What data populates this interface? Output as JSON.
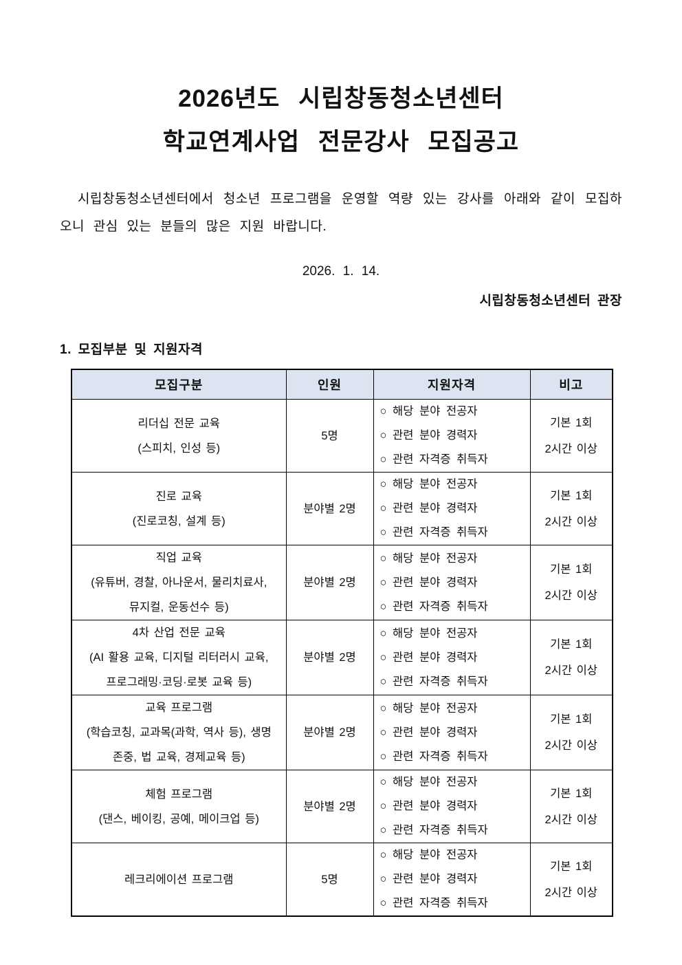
{
  "document": {
    "title_lines": [
      "2026년도 시립창동청소년센터",
      "학교연계사업 전문강사 모집공고"
    ],
    "intro": "시립창동청소년센터에서 청소년 프로그램을 운영할 역량 있는 강사를 아래와 같이 모집하오니 관심 있는 분들의 많은 지원 바랍니다.",
    "date": "2026. 1. 14.",
    "signer": "시립창동청소년센터 관장",
    "section_heading": "1. 모집부분 및 지원자격"
  },
  "colors": {
    "table_header_bg": "#dce3f1",
    "table_border": "#000000",
    "text": "#111111",
    "page_bg": "#ffffff"
  },
  "table": {
    "headers": [
      "모집구분",
      "인원",
      "지원자격",
      "비고"
    ],
    "rows": [
      {
        "category": [
          "리더십 전문 교육",
          "(스피치, 인성 등)"
        ],
        "count": "5명",
        "qualifications": [
          "○ 해당 분야 전공자",
          "○ 관련 분야 경력자",
          "○ 관련 자격증 취득자"
        ],
        "note": [
          "기본 1회",
          "2시간 이상"
        ]
      },
      {
        "category": [
          "진로 교육",
          "(진로코칭, 설계 등)"
        ],
        "count": "분야별 2명",
        "qualifications": [
          "○ 해당 분야 전공자",
          "○ 관련 분야 경력자",
          "○ 관련 자격증 취득자"
        ],
        "note": [
          "기본 1회",
          "2시간 이상"
        ]
      },
      {
        "category": [
          "직업 교육",
          "(유튜버, 경찰, 아나운서, 물리치료사,",
          "뮤지컬, 운동선수 등)"
        ],
        "count": "분야별 2명",
        "qualifications": [
          "○ 해당 분야 전공자",
          "○ 관련 분야 경력자",
          "○ 관련 자격증 취득자"
        ],
        "note": [
          "기본 1회",
          "2시간 이상"
        ]
      },
      {
        "category": [
          "4차 산업 전문 교육",
          "(AI 활용 교육, 디지털 리터러시 교육,",
          "프로그래밍·코딩·로봇 교육 등)"
        ],
        "count": "분야별 2명",
        "qualifications": [
          "○ 해당 분야 전공자",
          "○ 관련 분야 경력자",
          "○ 관련 자격증 취득자"
        ],
        "note": [
          "기본 1회",
          "2시간 이상"
        ]
      },
      {
        "category": [
          "교육 프로그램",
          "(학습코칭, 교과목(과학, 역사 등), 생명",
          "존중, 법 교육, 경제교육 등)"
        ],
        "count": "분야별 2명",
        "qualifications": [
          "○ 해당 분야 전공자",
          "○ 관련 분야 경력자",
          "○ 관련 자격증 취득자"
        ],
        "note": [
          "기본 1회",
          "2시간 이상"
        ]
      },
      {
        "category": [
          "체험 프로그램",
          "(댄스, 베이킹, 공예, 메이크업 등)"
        ],
        "count": "분야별 2명",
        "qualifications": [
          "○ 해당 분야 전공자",
          "○ 관련 분야 경력자",
          "○ 관련 자격증 취득자"
        ],
        "note": [
          "기본 1회",
          "2시간 이상"
        ]
      },
      {
        "category": [
          "레크리에이션 프로그램"
        ],
        "count": "5명",
        "qualifications": [
          "○ 해당 분야 전공자",
          "○ 관련 분야 경력자",
          "○ 관련 자격증 취득자"
        ],
        "note": [
          "기본 1회",
          "2시간 이상"
        ]
      }
    ]
  }
}
